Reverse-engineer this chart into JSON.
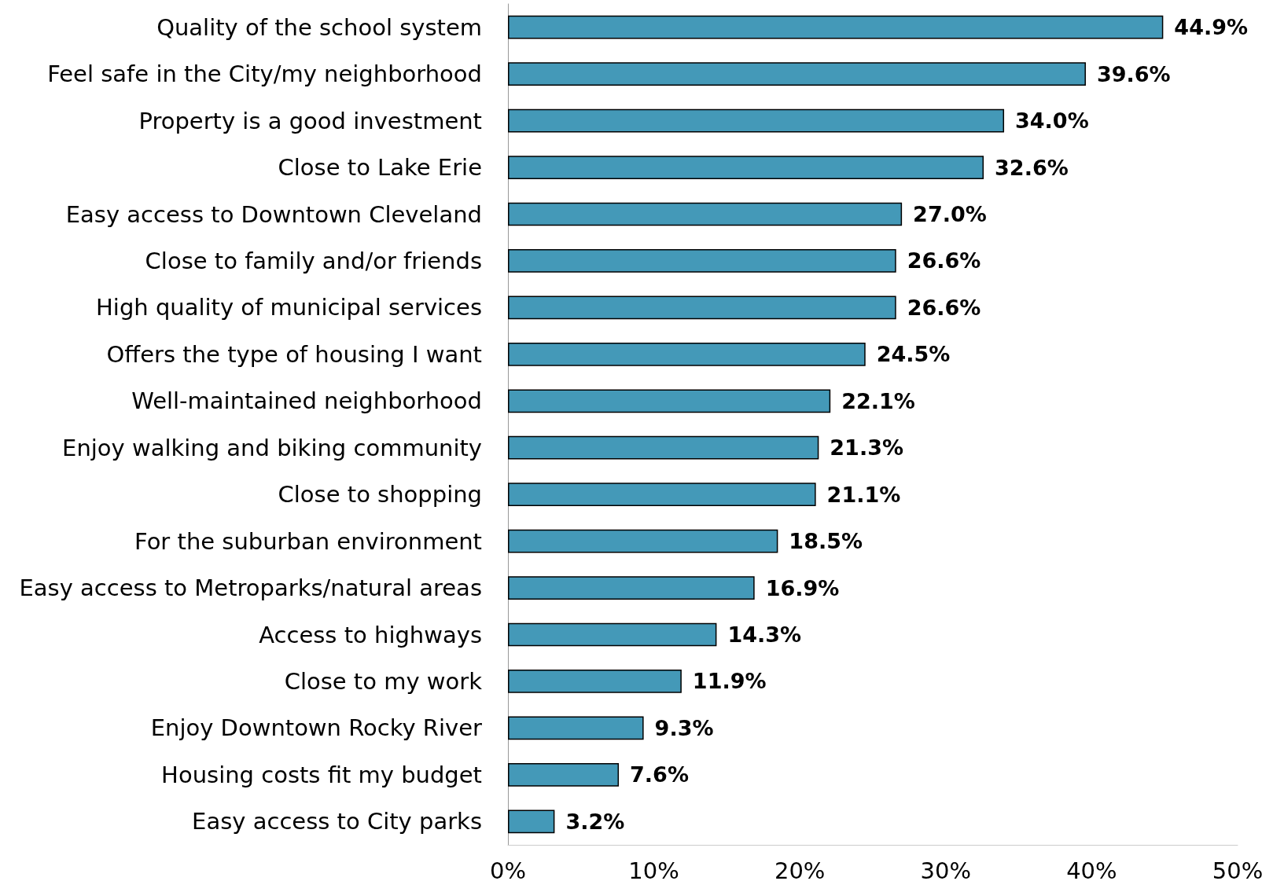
{
  "chart_data": {
    "type": "bar",
    "orientation": "horizontal",
    "categories": [
      "Quality of the school system",
      "Feel safe in the City/my neighborhood",
      "Property is a good investment",
      "Close to Lake Erie",
      "Easy access to Downtown Cleveland",
      "Close to family and/or friends",
      "High quality of municipal services",
      "Offers the type of housing I want",
      "Well-maintained neighborhood",
      "Enjoy walking and biking community",
      "Close to shopping",
      "For the suburban environment",
      "Easy access to Metroparks/natural areas",
      "Access to highways",
      "Close to my work",
      "Enjoy Downtown Rocky River",
      "Housing costs fit my budget",
      "Easy access to City parks"
    ],
    "values": [
      44.9,
      39.6,
      34.0,
      32.6,
      27.0,
      26.6,
      26.6,
      24.5,
      22.1,
      21.3,
      21.1,
      18.5,
      16.9,
      14.3,
      11.9,
      9.3,
      7.6,
      3.2
    ],
    "value_labels": [
      "44.9%",
      "39.6%",
      "34.0%",
      "32.6%",
      "27.0%",
      "26.6%",
      "26.6%",
      "24.5%",
      "22.1%",
      "21.3%",
      "21.1%",
      "18.5%",
      "16.9%",
      "14.3%",
      "11.9%",
      "9.3%",
      "7.6%",
      "3.2%"
    ],
    "color": "#4499b8",
    "xlim": [
      0,
      50
    ],
    "xticks": [
      {
        "value": 0,
        "label": "0%"
      },
      {
        "value": 10,
        "label": "10%"
      },
      {
        "value": 20,
        "label": "20%"
      },
      {
        "value": 30,
        "label": "30%"
      },
      {
        "value": 40,
        "label": "40%"
      },
      {
        "value": 50,
        "label": "50%"
      }
    ],
    "grid": false
  }
}
